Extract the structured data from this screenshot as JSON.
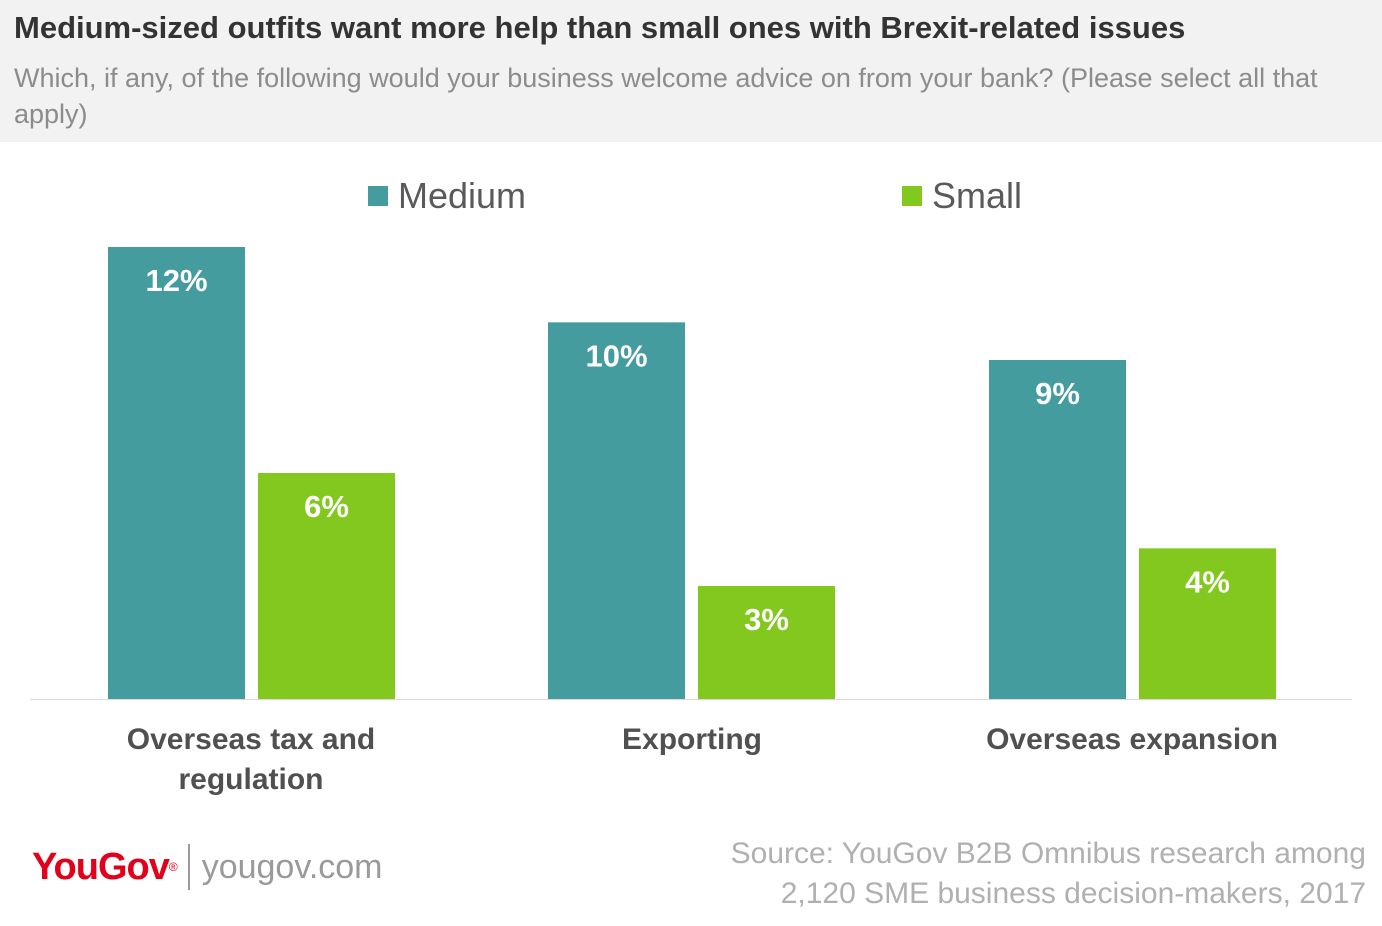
{
  "header": {
    "title": "Medium-sized outfits want more help than small ones with Brexit-related issues",
    "subtitle": "Which, if any, of the following would your business welcome advice on from your bank? (Please select all that apply)"
  },
  "legend": [
    {
      "label": "Medium",
      "color": "#459c9f"
    },
    {
      "label": "Small",
      "color": "#82c81e"
    }
  ],
  "chart_data": {
    "type": "bar",
    "categories": [
      "Overseas tax and regulation",
      "Exporting",
      "Overseas expansion"
    ],
    "series": [
      {
        "name": "Medium",
        "values": [
          12,
          10,
          9
        ],
        "labels": [
          "12%",
          "10%",
          "9%"
        ],
        "color": "#459c9f"
      },
      {
        "name": "Small",
        "values": [
          6,
          3,
          4
        ],
        "labels": [
          "6%",
          "3%",
          "4%"
        ],
        "color": "#82c81e"
      }
    ],
    "ylim": [
      0,
      12
    ],
    "grid": false,
    "legend_position": "top"
  },
  "footer": {
    "brand": "YouGov",
    "url": "yougov.com",
    "source_line1": "Source: YouGov B2B Omnibus research among",
    "source_line2": "2,120 SME business decision-makers, 2017"
  }
}
